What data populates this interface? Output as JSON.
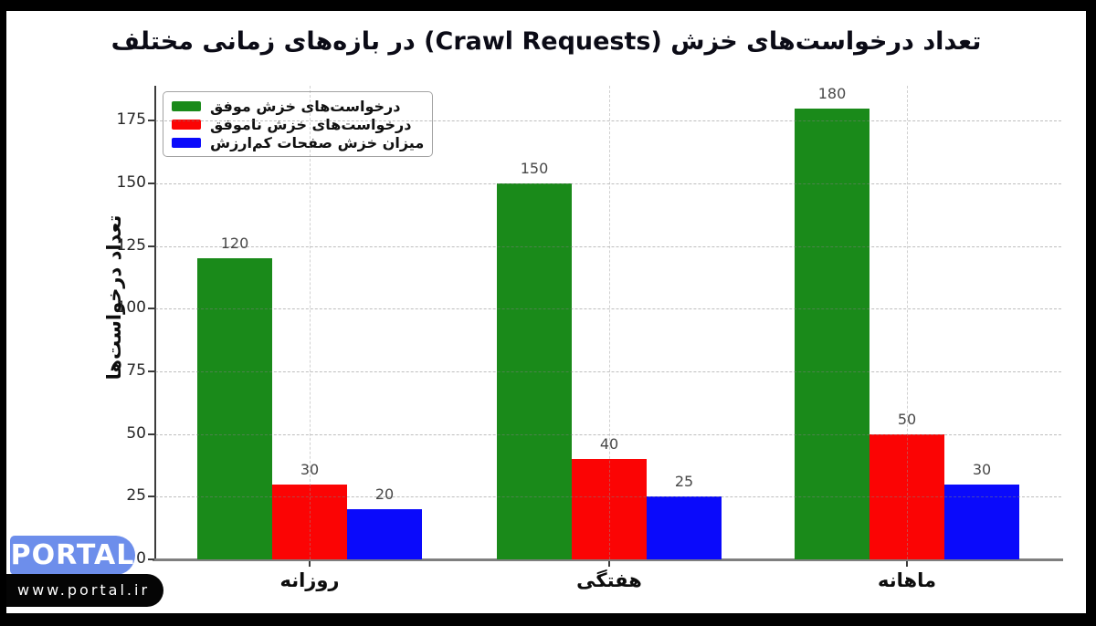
{
  "chart_data": {
    "type": "bar",
    "title": "تعداد درخواست‌های خزش (Crawl Requests) در بازه‌های زمانی مختلف",
    "ylabel": "تعداد درخواست‌ها",
    "xlabel": "",
    "categories": [
      "روزانه",
      "هفتگی",
      "ماهانه"
    ],
    "series": [
      {
        "name": "درخواست‌های خزش موفق",
        "color": "#1a8a1a",
        "values": [
          120,
          150,
          180
        ]
      },
      {
        "name": "درخواست‌های خزش ناموفق",
        "color": "#fb0404",
        "values": [
          30,
          40,
          50
        ]
      },
      {
        "name": "میزان خزش صفحات کم‌ارزش",
        "color": "#0a0afb",
        "values": [
          20,
          25,
          30
        ]
      }
    ],
    "yticks": [
      0,
      25,
      50,
      75,
      100,
      125,
      150,
      175
    ],
    "ylim": [
      0,
      189
    ],
    "grid": true,
    "legend_position": "upper-left",
    "value_labels_shown": true
  },
  "watermark": {
    "brand": "PORTAL",
    "url": "www.portal.ir",
    "brand_bg": "#6d8eeb",
    "url_bg": "#050505"
  },
  "frame": {
    "border_color": "#000000",
    "card_color": "#ffffff"
  }
}
